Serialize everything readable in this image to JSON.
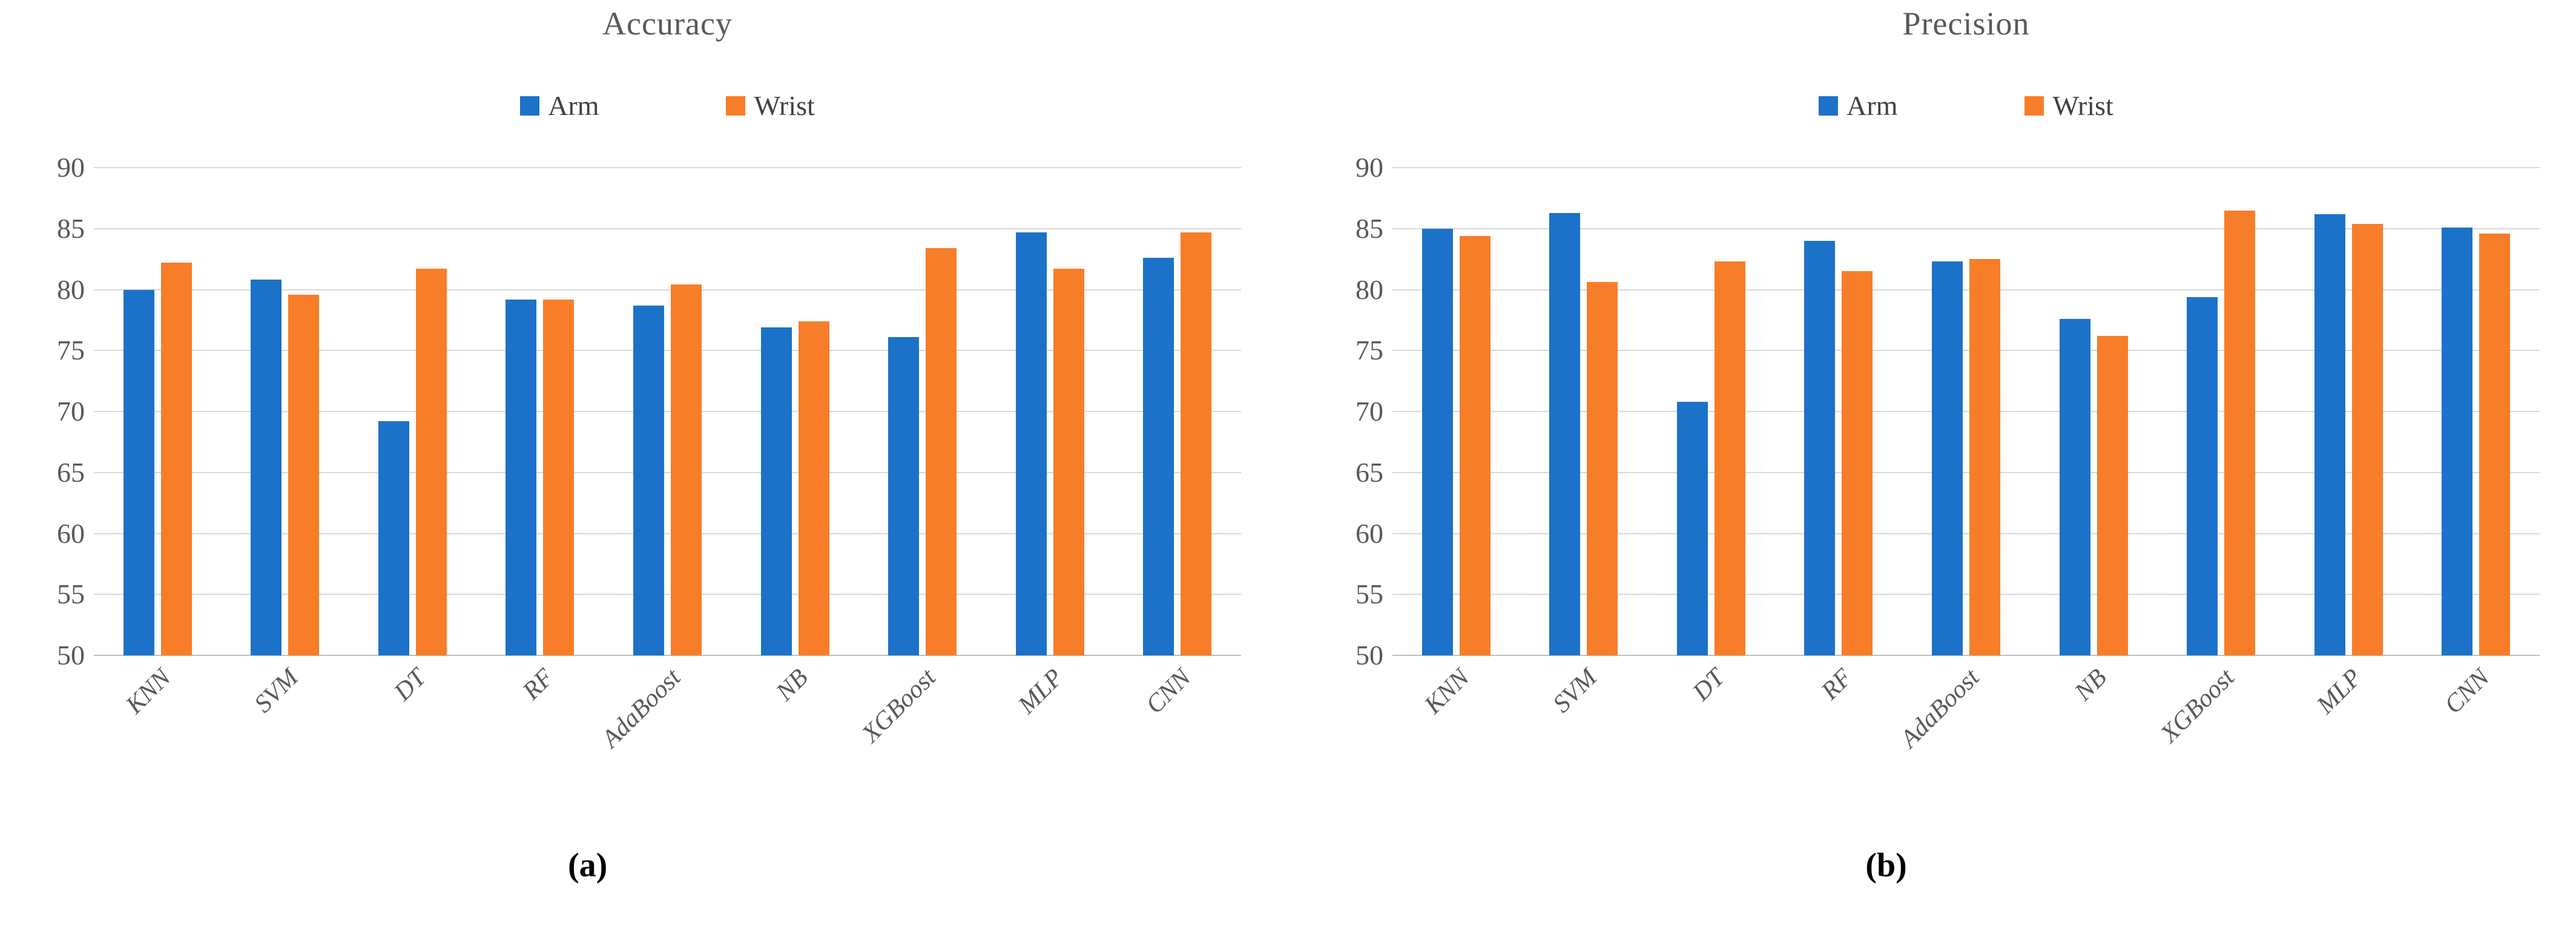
{
  "figure": {
    "series_colors": {
      "Arm": "#1b72c8",
      "Wrist": "#f87d28"
    },
    "text_color": "#595959",
    "grid_color": "#d9d9d9",
    "axis_color": "#bfbfbf",
    "legend_labels": [
      "Arm",
      "Wrist"
    ],
    "captions": {
      "a": "(a)",
      "b": "(b)"
    }
  },
  "chart_data": [
    {
      "type": "bar",
      "title": "Accuracy",
      "caption": "(a)",
      "legend": [
        "Arm",
        "Wrist"
      ],
      "legend_position": "top-center",
      "grid": true,
      "ylim": [
        50,
        90
      ],
      "yticks": [
        90,
        85,
        80,
        75,
        70,
        65,
        60,
        55,
        50
      ],
      "categories": [
        "KNN",
        "SVM",
        "DT",
        "RF",
        "AdaBoost",
        "NB",
        "XGBoost",
        "MLP",
        "CNN"
      ],
      "series": [
        {
          "name": "Arm",
          "values": [
            80.0,
            80.8,
            69.2,
            79.2,
            78.7,
            76.9,
            76.1,
            84.7,
            82.6
          ]
        },
        {
          "name": "Wrist",
          "values": [
            82.2,
            79.6,
            81.7,
            79.2,
            80.4,
            77.4,
            83.4,
            81.7,
            84.7
          ]
        }
      ]
    },
    {
      "type": "bar",
      "title": "Precision",
      "caption": "(b)",
      "legend": [
        "Arm",
        "Wrist"
      ],
      "legend_position": "top-center",
      "grid": true,
      "ylim": [
        50,
        90
      ],
      "yticks": [
        90,
        85,
        80,
        75,
        70,
        65,
        60,
        55,
        50
      ],
      "categories": [
        "KNN",
        "SVM",
        "DT",
        "RF",
        "AdaBoost",
        "NB",
        "XGBoost",
        "MLP",
        "CNN"
      ],
      "series": [
        {
          "name": "Arm",
          "values": [
            85.0,
            86.3,
            70.8,
            84.0,
            82.3,
            77.6,
            79.4,
            86.2,
            85.1
          ]
        },
        {
          "name": "Wrist",
          "values": [
            84.4,
            80.6,
            82.3,
            81.5,
            82.5,
            76.2,
            86.5,
            85.4,
            84.6
          ]
        }
      ]
    }
  ]
}
